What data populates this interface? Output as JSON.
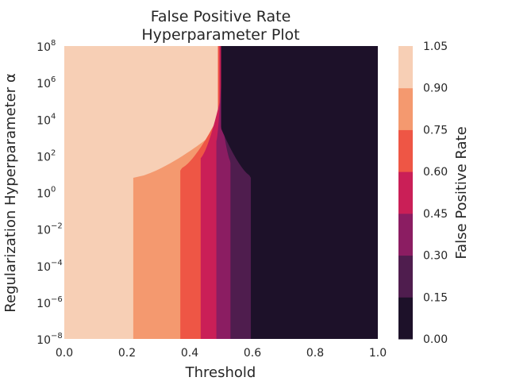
{
  "chart_data": {
    "type": "heatmap",
    "title_line1": "False Positive Rate",
    "title_line2": "Hyperparameter Plot",
    "xlabel": "Threshold",
    "ylabel": "Regularization Hyperparameter α",
    "colorbar_label": "False Positive Rate",
    "xlim": [
      0.0,
      1.0
    ],
    "ylim_log10": [
      -8,
      8
    ],
    "x_ticks": [
      "0.0",
      "0.2",
      "0.4",
      "0.6",
      "0.8",
      "1.0"
    ],
    "x_tick_values": [
      0.0,
      0.2,
      0.4,
      0.6,
      0.8,
      1.0
    ],
    "y_ticks": [
      {
        "base": "10",
        "exp": "8",
        "log10": 8
      },
      {
        "base": "10",
        "exp": "6",
        "log10": 6
      },
      {
        "base": "10",
        "exp": "4",
        "log10": 4
      },
      {
        "base": "10",
        "exp": "2",
        "log10": 2
      },
      {
        "base": "10",
        "exp": "0",
        "log10": 0
      },
      {
        "base": "10",
        "exp": "−2",
        "log10": -2
      },
      {
        "base": "10",
        "exp": "−4",
        "log10": -4
      },
      {
        "base": "10",
        "exp": "−6",
        "log10": -6
      },
      {
        "base": "10",
        "exp": "−8",
        "log10": -8
      }
    ],
    "colorbar_ticks": [
      "0.00",
      "0.15",
      "0.30",
      "0.45",
      "0.60",
      "0.75",
      "0.90",
      "1.05"
    ],
    "levels": [
      0.0,
      0.15,
      0.3,
      0.45,
      0.6,
      0.75,
      0.9,
      1.05
    ],
    "level_colors": [
      "#1d1129",
      "#4f1d4e",
      "#8b1d62",
      "#ca1f57",
      "#ee5645",
      "#f4996f",
      "#f7cfb5"
    ],
    "level_boundaries": [
      {
        "level": 0.9,
        "x_low_alpha": 0.22,
        "x_high_alpha": 0.49,
        "start_log10": 0.8,
        "curve_span": 2.6
      },
      {
        "level": 0.75,
        "x_low_alpha": 0.37,
        "x_high_alpha": 0.49,
        "start_log10": 1.3,
        "curve_span": 2.8
      },
      {
        "level": 0.6,
        "x_low_alpha": 0.435,
        "x_high_alpha": 0.495,
        "start_log10": 1.9,
        "curve_span": 3.0
      },
      {
        "level": 0.45,
        "x_low_alpha": 0.485,
        "x_high_alpha": 0.5,
        "start_log10": 2.8,
        "curve_span": 3.0
      },
      {
        "level": 0.3,
        "x_low_alpha": 0.53,
        "x_high_alpha": 0.5,
        "start_log10": 1.7,
        "curve_span": 2.6
      },
      {
        "level": 0.15,
        "x_low_alpha": 0.595,
        "x_high_alpha": 0.5,
        "start_log10": 0.9,
        "curve_span": 2.6
      }
    ]
  }
}
